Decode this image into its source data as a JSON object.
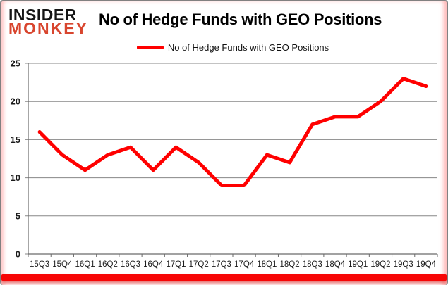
{
  "logo": {
    "line1": "INSIDER",
    "line2": "MONKEY"
  },
  "header": {
    "title": "No of Hedge Funds with GEO Positions"
  },
  "legend": {
    "label": "No of Hedge Funds with GEO Positions"
  },
  "chart_data": {
    "type": "line",
    "title": "No of Hedge Funds with GEO Positions",
    "categories": [
      "15Q3",
      "15Q4",
      "16Q1",
      "16Q2",
      "16Q3",
      "16Q4",
      "17Q1",
      "17Q2",
      "17Q3",
      "17Q4",
      "18Q1",
      "18Q2",
      "18Q3",
      "18Q4",
      "19Q1",
      "19Q2",
      "19Q3",
      "19Q4"
    ],
    "series": [
      {
        "name": "No of Hedge Funds with GEO Positions",
        "color": "#ff0000",
        "values": [
          16,
          13,
          11,
          13,
          14,
          11,
          14,
          12,
          9,
          9,
          13,
          12,
          17,
          18,
          18,
          20,
          23,
          22
        ]
      }
    ],
    "xlabel": "",
    "ylabel": "",
    "ylim": [
      0,
      25
    ],
    "yticks": [
      0,
      5,
      10,
      15,
      20,
      25
    ],
    "grid": true,
    "legend_position": "top-center"
  },
  "colors": {
    "line": "#ff0000",
    "grid": "#878787",
    "axis": "#6a6a6a",
    "tick_label": "#1a1a1a",
    "title": "#000000",
    "logo_top": "#151515",
    "logo_bottom": "#d8452e",
    "bottom_bar": "#f70505",
    "frame_border": "#818181"
  }
}
